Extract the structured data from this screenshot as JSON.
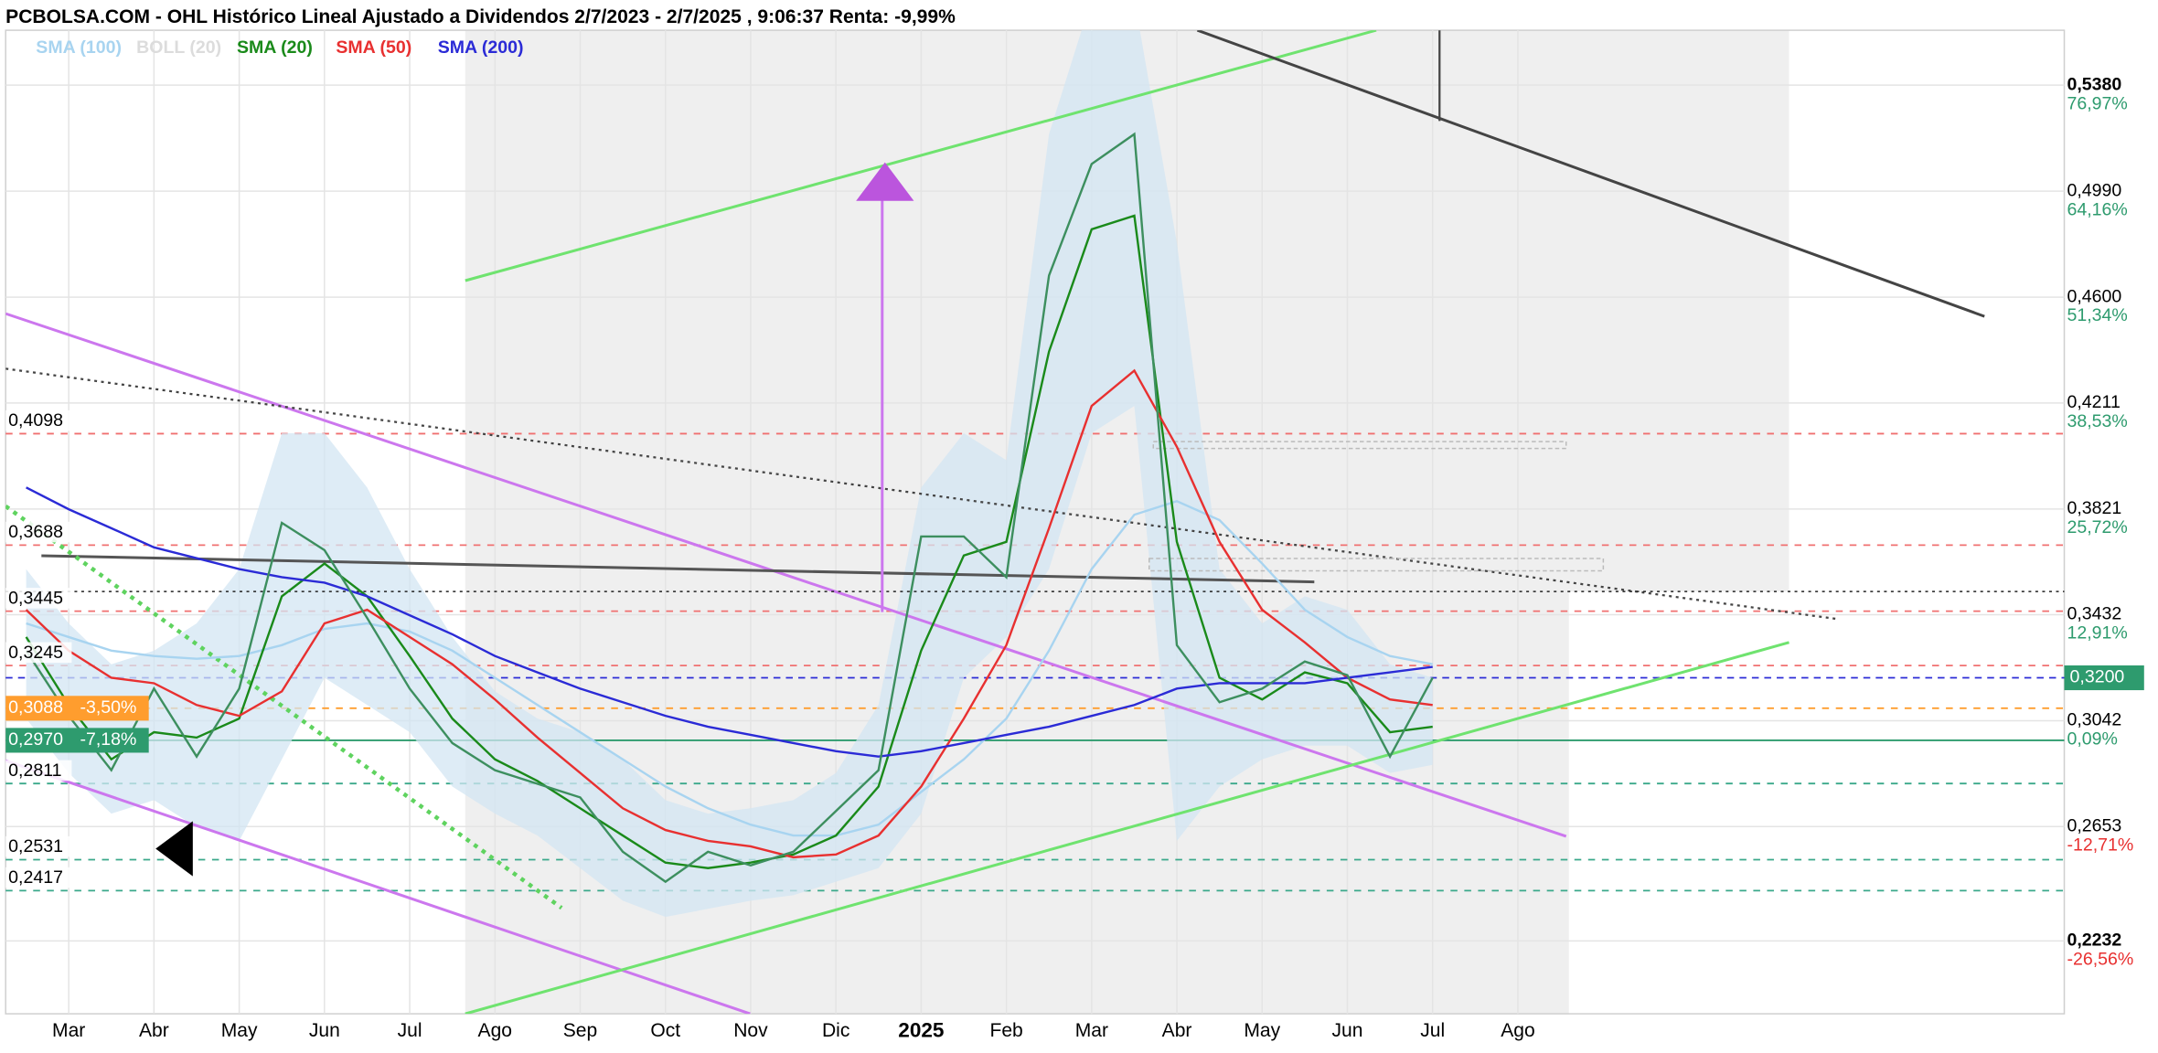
{
  "chart_data": {
    "type": "line",
    "title": "PCBOLSA.COM - OHL Histórico Lineal Ajustado a Dividendos 2/7/2023 - 2/7/2025 , 9:06:37 Renta: -9,99%",
    "x": [
      -0.5,
      0,
      0.5,
      1,
      1.5,
      2,
      2.5,
      3,
      3.5,
      4,
      4.5,
      5,
      5.5,
      6,
      6.5,
      7,
      7.5,
      8,
      8.5,
      9,
      9.5,
      10,
      10.5,
      11,
      11.5,
      12,
      12.5,
      13,
      13.5,
      14,
      14.5,
      15,
      15.5,
      16
    ],
    "xlim": [
      -0.74,
      23.41
    ],
    "xticks": [
      {
        "value": 0,
        "label": "Mar"
      },
      {
        "value": 1,
        "label": "Abr"
      },
      {
        "value": 2,
        "label": "May"
      },
      {
        "value": 3,
        "label": "Jun"
      },
      {
        "value": 4,
        "label": "Jul"
      },
      {
        "value": 5,
        "label": "Ago"
      },
      {
        "value": 6,
        "label": "Sep"
      },
      {
        "value": 7,
        "label": "Oct"
      },
      {
        "value": 8,
        "label": "Nov"
      },
      {
        "value": 9,
        "label": "Dic"
      },
      {
        "value": 10,
        "label": "2025"
      },
      {
        "value": 11,
        "label": "Feb"
      },
      {
        "value": 12,
        "label": "Mar"
      },
      {
        "value": 13,
        "label": "Abr"
      },
      {
        "value": 14,
        "label": "May"
      },
      {
        "value": 15,
        "label": "Jun"
      },
      {
        "value": 16,
        "label": "Jul"
      },
      {
        "value": 17,
        "label": "Ago"
      }
    ],
    "ylim": [
      0.1964,
      0.5582
    ],
    "yticks": [
      {
        "value": 0.538,
        "label": "0,5380"
      },
      {
        "value": 0.499,
        "label": "0,4990"
      },
      {
        "value": 0.46,
        "label": "0,4600"
      },
      {
        "value": 0.4211,
        "label": "0,4211"
      },
      {
        "value": 0.3821,
        "label": "0,3821"
      },
      {
        "value": 0.3432,
        "label": "0,3432"
      },
      {
        "value": 0.3042,
        "label": "0,3042"
      },
      {
        "value": 0.2653,
        "label": "0,2653"
      },
      {
        "value": 0.2232,
        "label": "0,2232"
      }
    ],
    "y2lim": [
      -35.39,
      83.62
    ],
    "y2ticks": [
      {
        "value": 76.97,
        "label": "76,97%"
      },
      {
        "value": 64.16,
        "label": "64,16%"
      },
      {
        "value": 51.34,
        "label": "51,34%"
      },
      {
        "value": 38.53,
        "label": "38,53%"
      },
      {
        "value": 25.72,
        "label": "25,72%"
      },
      {
        "value": 12.91,
        "label": "12,91%"
      },
      {
        "value": 0.09,
        "label": "0,09%"
      },
      {
        "value": -12.71,
        "label": "-12,71%"
      },
      {
        "value": -26.56,
        "label": "-26,56%"
      }
    ],
    "grid": true,
    "price": {
      "color": "#3d8f5f",
      "values": [
        0.33,
        0.306,
        0.286,
        0.316,
        0.291,
        0.316,
        0.377,
        0.367,
        0.342,
        0.316,
        0.296,
        0.286,
        0.281,
        0.276,
        0.256,
        0.245,
        0.256,
        0.251,
        0.256,
        0.271,
        0.286,
        0.372,
        0.372,
        0.357,
        0.468,
        0.509,
        0.52,
        0.332,
        0.311,
        0.316,
        0.326,
        0.321,
        0.291,
        0.32
      ]
    },
    "last": {
      "value": 0.32,
      "label": "0,3200",
      "color": "#2e9b6e",
      "line_color": "#2b2bd6"
    },
    "series": [
      {
        "name": "SMA (100)",
        "color": "#a8d4f0",
        "values": [
          0.34,
          0.335,
          0.33,
          0.328,
          0.327,
          0.328,
          0.332,
          0.338,
          0.34,
          0.337,
          0.33,
          0.32,
          0.31,
          0.3,
          0.29,
          0.28,
          0.272,
          0.266,
          0.262,
          0.262,
          0.266,
          0.278,
          0.29,
          0.305,
          0.33,
          0.36,
          0.38,
          0.385,
          0.378,
          0.362,
          0.345,
          0.335,
          0.328,
          0.325
        ]
      },
      {
        "name": "BOLL (20)",
        "color": "#dcdcdc",
        "fill": "#d3e5f3",
        "upper": [
          0.36,
          0.34,
          0.325,
          0.33,
          0.34,
          0.36,
          0.41,
          0.41,
          0.39,
          0.36,
          0.335,
          0.315,
          0.305,
          0.3,
          0.29,
          0.275,
          0.27,
          0.272,
          0.275,
          0.285,
          0.31,
          0.39,
          0.41,
          0.4,
          0.52,
          0.57,
          0.57,
          0.48,
          0.36,
          0.34,
          0.35,
          0.345,
          0.325,
          0.32
        ],
        "lower": [
          0.305,
          0.285,
          0.27,
          0.275,
          0.265,
          0.26,
          0.29,
          0.32,
          0.31,
          0.3,
          0.28,
          0.27,
          0.262,
          0.25,
          0.238,
          0.232,
          0.235,
          0.238,
          0.24,
          0.245,
          0.25,
          0.27,
          0.32,
          0.335,
          0.36,
          0.41,
          0.42,
          0.26,
          0.28,
          0.29,
          0.295,
          0.295,
          0.285,
          0.288
        ]
      },
      {
        "name": "SMA (20)",
        "color": "#1a8a1a",
        "values": [
          0.335,
          0.31,
          0.29,
          0.3,
          0.298,
          0.305,
          0.35,
          0.362,
          0.35,
          0.328,
          0.305,
          0.29,
          0.282,
          0.272,
          0.262,
          0.252,
          0.25,
          0.252,
          0.255,
          0.262,
          0.28,
          0.33,
          0.365,
          0.37,
          0.44,
          0.485,
          0.49,
          0.37,
          0.32,
          0.312,
          0.322,
          0.318,
          0.3,
          0.302
        ]
      },
      {
        "name": "SMA (50)",
        "color": "#e83030",
        "values": [
          0.345,
          0.33,
          0.32,
          0.318,
          0.31,
          0.306,
          0.315,
          0.34,
          0.345,
          0.335,
          0.325,
          0.312,
          0.298,
          0.285,
          0.272,
          0.264,
          0.26,
          0.258,
          0.254,
          0.255,
          0.262,
          0.28,
          0.305,
          0.332,
          0.375,
          0.42,
          0.433,
          0.405,
          0.37,
          0.345,
          0.333,
          0.32,
          0.312,
          0.31
        ]
      },
      {
        "name": "SMA (200)",
        "color": "#2b2bd6",
        "values": [
          0.39,
          0.382,
          0.375,
          0.368,
          0.364,
          0.36,
          0.357,
          0.355,
          0.35,
          0.343,
          0.336,
          0.328,
          0.322,
          0.316,
          0.311,
          0.306,
          0.302,
          0.299,
          0.296,
          0.293,
          0.291,
          0.293,
          0.296,
          0.299,
          0.302,
          0.306,
          0.31,
          0.316,
          0.318,
          0.318,
          0.318,
          0.32,
          0.322,
          0.324
        ]
      }
    ],
    "levels": [
      {
        "value": 0.4098,
        "label": "0,4098",
        "color": "#f07070"
      },
      {
        "value": 0.3688,
        "label": "0,3688",
        "color": "#f07070"
      },
      {
        "value": 0.3445,
        "label": "0,3445",
        "color": "#f07070"
      },
      {
        "value": 0.3245,
        "label": "0,3245",
        "color": "#f07070"
      },
      {
        "value": 0.3088,
        "label": "0,3088",
        "pct_label": "-3,50%",
        "color": "#ff9d2e",
        "box_color": "#ff9d2e"
      },
      {
        "value": 0.297,
        "label": "0,2970",
        "pct_label": "-7,18%",
        "color": "#2e9b6e",
        "box_color": "#2e9b6e"
      },
      {
        "value": 0.2811,
        "label": "0,2811",
        "color": "#3aa88a"
      },
      {
        "value": 0.2531,
        "label": "0,2531",
        "color": "#3aa88a"
      },
      {
        "value": 0.2417,
        "label": "0,2417",
        "color": "#3aa88a"
      }
    ]
  }
}
